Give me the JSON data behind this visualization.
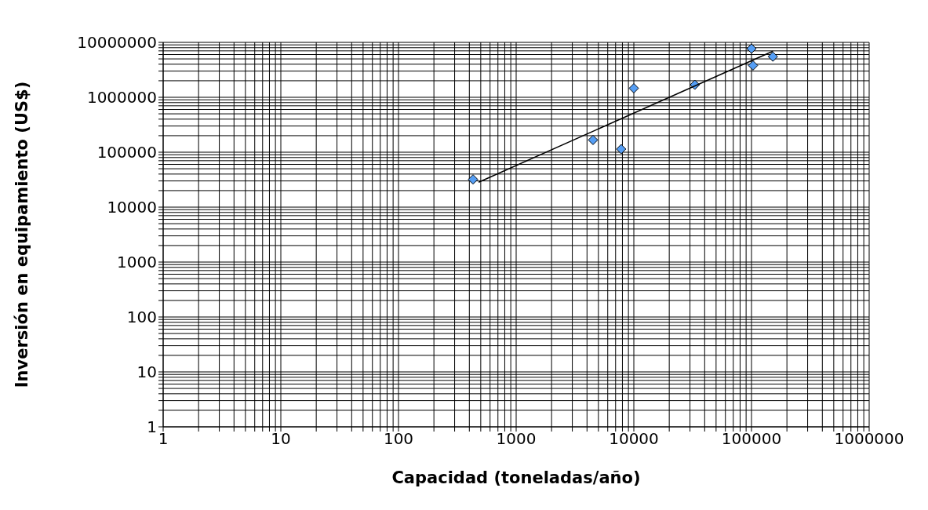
{
  "chart_data": {
    "type": "scatter",
    "xlabel": "Capacidad  (toneladas/año)",
    "ylabel": "Inversión en equipamiento  (US$)",
    "log": "xy",
    "grid": true,
    "legend": false,
    "marker": "diamond",
    "xlim": [
      1,
      1000000
    ],
    "ylim": [
      1,
      10000000
    ],
    "xticks": [
      1,
      {
        "value": 2,
        "label": null
      },
      {
        "value": 3,
        "label": null
      },
      {
        "value": 4,
        "label": null
      },
      {
        "value": 5,
        "label": null
      },
      {
        "value": 6,
        "label": null
      },
      {
        "value": 7,
        "label": null
      },
      {
        "value": 8,
        "label": null
      },
      {
        "value": 9,
        "label": null
      },
      10,
      {
        "value": 20,
        "label": null
      },
      {
        "value": 30,
        "label": null
      },
      {
        "value": 40,
        "label": null
      },
      {
        "value": 50,
        "label": null
      },
      {
        "value": 60,
        "label": null
      },
      {
        "value": 70,
        "label": null
      },
      {
        "value": 80,
        "label": null
      },
      {
        "value": 90,
        "label": null
      },
      100,
      {
        "value": 200,
        "label": null
      },
      {
        "value": 300,
        "label": null
      },
      {
        "value": 400,
        "label": null
      },
      {
        "value": 500,
        "label": null
      },
      {
        "value": 600,
        "label": null
      },
      {
        "value": 700,
        "label": null
      },
      {
        "value": 800,
        "label": null
      },
      {
        "value": 900,
        "label": null
      },
      1000,
      {
        "value": 2000,
        "label": null
      },
      {
        "value": 3000,
        "label": null
      },
      {
        "value": 4000,
        "label": null
      },
      {
        "value": 5000,
        "label": null
      },
      {
        "value": 6000,
        "label": null
      },
      {
        "value": 7000,
        "label": null
      },
      {
        "value": 8000,
        "label": null
      },
      {
        "value": 9000,
        "label": null
      },
      10000,
      {
        "value": 20000,
        "label": null
      },
      {
        "value": 30000,
        "label": null
      },
      {
        "value": 40000,
        "label": null
      },
      {
        "value": 50000,
        "label": null
      },
      {
        "value": 60000,
        "label": null
      },
      {
        "value": 70000,
        "label": null
      },
      {
        "value": 80000,
        "label": null
      },
      {
        "value": 90000,
        "label": null
      },
      100000,
      {
        "value": 200000,
        "label": null
      },
      {
        "value": 300000,
        "label": null
      },
      {
        "value": 400000,
        "label": null
      },
      {
        "value": 500000,
        "label": null
      },
      {
        "value": 600000,
        "label": null
      },
      {
        "value": 700000,
        "label": null
      },
      {
        "value": 800000,
        "label": null
      },
      {
        "value": 900000,
        "label": null
      },
      1000000
    ],
    "yticks": [
      1,
      {
        "value": 2,
        "label": null
      },
      {
        "value": 3,
        "label": null
      },
      {
        "value": 4,
        "label": null
      },
      {
        "value": 5,
        "label": null
      },
      {
        "value": 6,
        "label": null
      },
      {
        "value": 7,
        "label": null
      },
      {
        "value": 8,
        "label": null
      },
      {
        "value": 9,
        "label": null
      },
      10,
      {
        "value": 20,
        "label": null
      },
      {
        "value": 30,
        "label": null
      },
      {
        "value": 40,
        "label": null
      },
      {
        "value": 50,
        "label": null
      },
      {
        "value": 60,
        "label": null
      },
      {
        "value": 70,
        "label": null
      },
      {
        "value": 80,
        "label": null
      },
      {
        "value": 90,
        "label": null
      },
      100,
      {
        "value": 200,
        "label": null
      },
      {
        "value": 300,
        "label": null
      },
      {
        "value": 400,
        "label": null
      },
      {
        "value": 500,
        "label": null
      },
      {
        "value": 600,
        "label": null
      },
      {
        "value": 700,
        "label": null
      },
      {
        "value": 800,
        "label": null
      },
      {
        "value": 900,
        "label": null
      },
      1000,
      {
        "value": 2000,
        "label": null
      },
      {
        "value": 3000,
        "label": null
      },
      {
        "value": 4000,
        "label": null
      },
      {
        "value": 5000,
        "label": null
      },
      {
        "value": 6000,
        "label": null
      },
      {
        "value": 7000,
        "label": null
      },
      {
        "value": 8000,
        "label": null
      },
      {
        "value": 9000,
        "label": null
      },
      10000,
      {
        "value": 20000,
        "label": null
      },
      {
        "value": 30000,
        "label": null
      },
      {
        "value": 40000,
        "label": null
      },
      {
        "value": 50000,
        "label": null
      },
      {
        "value": 60000,
        "label": null
      },
      {
        "value": 70000,
        "label": null
      },
      {
        "value": 80000,
        "label": null
      },
      {
        "value": 90000,
        "label": null
      },
      100000,
      {
        "value": 200000,
        "label": null
      },
      {
        "value": 300000,
        "label": null
      },
      {
        "value": 400000,
        "label": null
      },
      {
        "value": 500000,
        "label": null
      },
      {
        "value": 600000,
        "label": null
      },
      {
        "value": 700000,
        "label": null
      },
      {
        "value": 800000,
        "label": null
      },
      {
        "value": 900000,
        "label": null
      },
      1000000,
      {
        "value": 2000000,
        "label": null
      },
      {
        "value": 3000000,
        "label": null
      },
      {
        "value": 4000000,
        "label": null
      },
      {
        "value": 5000000,
        "label": null
      },
      {
        "value": 6000000,
        "label": null
      },
      {
        "value": 7000000,
        "label": null
      },
      {
        "value": 8000000,
        "label": null
      },
      {
        "value": 9000000,
        "label": null
      },
      10000000
    ],
    "series": [
      {
        "type": "scatter",
        "color": "#559ef5",
        "x": [
          430,
          4500,
          7800,
          10000,
          33000,
          100000,
          103000,
          152000
        ],
        "values": [
          32000,
          167000,
          114000,
          1460000,
          1690000,
          7700000,
          3800000,
          5500000
        ]
      },
      {
        "type": "line",
        "color": "#000000",
        "marker": "none",
        "line_style": "solid",
        "x": [
          480,
          152000
        ],
        "values": [
          28400,
          6900000
        ]
      }
    ]
  }
}
